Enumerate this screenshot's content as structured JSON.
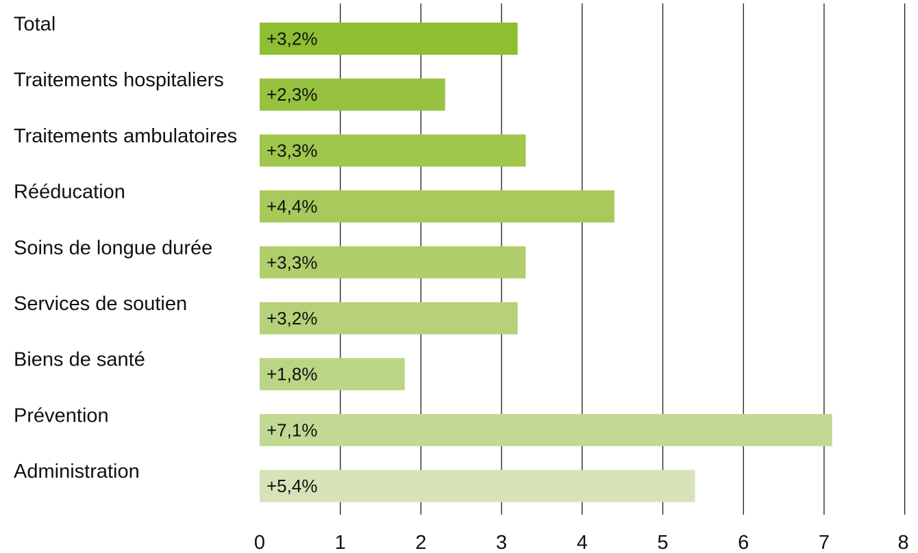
{
  "chart_data": {
    "type": "bar",
    "orientation": "horizontal",
    "title": "",
    "xlabel": "",
    "ylabel": "",
    "categories": [
      "Total",
      "Traitements hospitaliers",
      "Traitements ambulatoires",
      "Rééducation",
      "Soins de longue durée",
      "Services de soutien",
      "Biens de santé",
      "Prévention",
      "Administration"
    ],
    "values": [
      3.2,
      2.3,
      3.3,
      4.4,
      3.3,
      3.2,
      1.8,
      7.1,
      5.4
    ],
    "value_labels": [
      "+3,2%",
      "+2,3%",
      "+3,3%",
      "+4,4%",
      "+3,3%",
      "+3,2%",
      "+1,8%",
      "+7,1%",
      "+5,4%"
    ],
    "bar_colors": [
      "#8fbe32",
      "#97c240",
      "#9fc64d",
      "#a8ca5c",
      "#b0ce6b",
      "#b6d17a",
      "#bbd586",
      "#c2d993",
      "#d6e3b8"
    ],
    "xlim": [
      0,
      8
    ],
    "xticks": [
      0,
      1,
      2,
      3,
      4,
      5,
      6,
      7,
      8
    ],
    "xtick_labels": [
      "0",
      "1",
      "2",
      "3",
      "4",
      "5",
      "6",
      "7",
      "8"
    ],
    "grid": true,
    "legend": "none"
  }
}
